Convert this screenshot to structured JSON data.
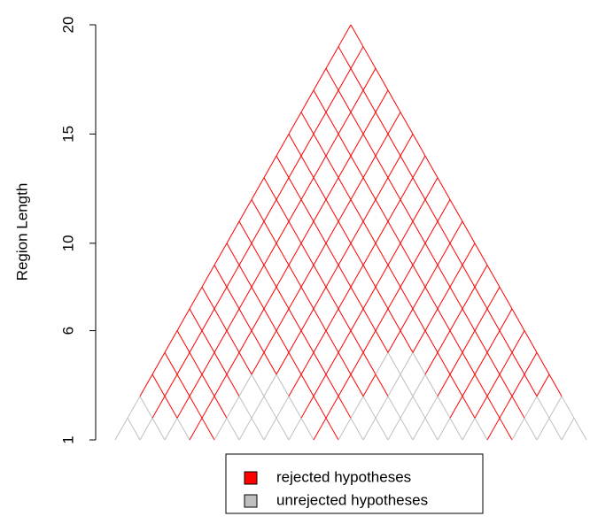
{
  "chart_data": {
    "type": "lattice",
    "ylabel": "Region Length",
    "ylim": [
      1,
      20
    ],
    "yticks": [
      1,
      6,
      10,
      15,
      20
    ],
    "rejected_color": "#ff0000",
    "unrejected_color": "#bebebe",
    "legend": [
      "rejected hypotheses",
      "unrejected hypotheses"
    ],
    "rows": [
      {
        "length": 2,
        "rejected": [
          0,
          0,
          0,
          1,
          0,
          0,
          0,
          0,
          1,
          0,
          0,
          0,
          0,
          0,
          0,
          1,
          0,
          0,
          0
        ]
      },
      {
        "length": 3,
        "rejected": [
          0,
          1,
          1,
          1,
          0,
          0,
          0,
          1,
          1,
          0,
          0,
          0,
          0,
          1,
          1,
          1,
          0,
          0
        ]
      },
      {
        "length": 4,
        "rejected": [
          1,
          1,
          1,
          1,
          0,
          0,
          1,
          1,
          1,
          1,
          0,
          0,
          1,
          1,
          1,
          1,
          1
        ]
      },
      {
        "length": 5,
        "rejected": [
          1,
          1,
          1,
          1,
          1,
          1,
          1,
          1,
          1,
          0,
          0,
          1,
          1,
          1,
          1,
          1
        ]
      },
      {
        "length": 6,
        "rejected": [
          1,
          1,
          1,
          1,
          1,
          1,
          1,
          1,
          1,
          1,
          1,
          1,
          1,
          1,
          1
        ]
      },
      {
        "length": 7,
        "rejected": [
          1,
          1,
          1,
          1,
          1,
          1,
          1,
          1,
          1,
          1,
          1,
          1,
          1,
          1
        ]
      },
      {
        "length": 8,
        "rejected": [
          1,
          1,
          1,
          1,
          1,
          1,
          1,
          1,
          1,
          1,
          1,
          1,
          1
        ]
      },
      {
        "length": 9,
        "rejected": [
          1,
          1,
          1,
          1,
          1,
          1,
          1,
          1,
          1,
          1,
          1,
          1
        ]
      },
      {
        "length": 10,
        "rejected": [
          1,
          1,
          1,
          1,
          1,
          1,
          1,
          1,
          1,
          1,
          1
        ]
      },
      {
        "length": 11,
        "rejected": [
          1,
          1,
          1,
          1,
          1,
          1,
          1,
          1,
          1,
          1
        ]
      },
      {
        "length": 12,
        "rejected": [
          1,
          1,
          1,
          1,
          1,
          1,
          1,
          1,
          1
        ]
      },
      {
        "length": 13,
        "rejected": [
          1,
          1,
          1,
          1,
          1,
          1,
          1,
          1
        ]
      },
      {
        "length": 14,
        "rejected": [
          1,
          1,
          1,
          1,
          1,
          1,
          1
        ]
      },
      {
        "length": 15,
        "rejected": [
          1,
          1,
          1,
          1,
          1,
          1
        ]
      },
      {
        "length": 16,
        "rejected": [
          1,
          1,
          1,
          1,
          1
        ]
      },
      {
        "length": 17,
        "rejected": [
          1,
          1,
          1,
          1
        ]
      },
      {
        "length": 18,
        "rejected": [
          1,
          1,
          1
        ]
      },
      {
        "length": 19,
        "rejected": [
          1,
          1
        ]
      },
      {
        "length": 20,
        "rejected": [
          1
        ]
      }
    ]
  }
}
